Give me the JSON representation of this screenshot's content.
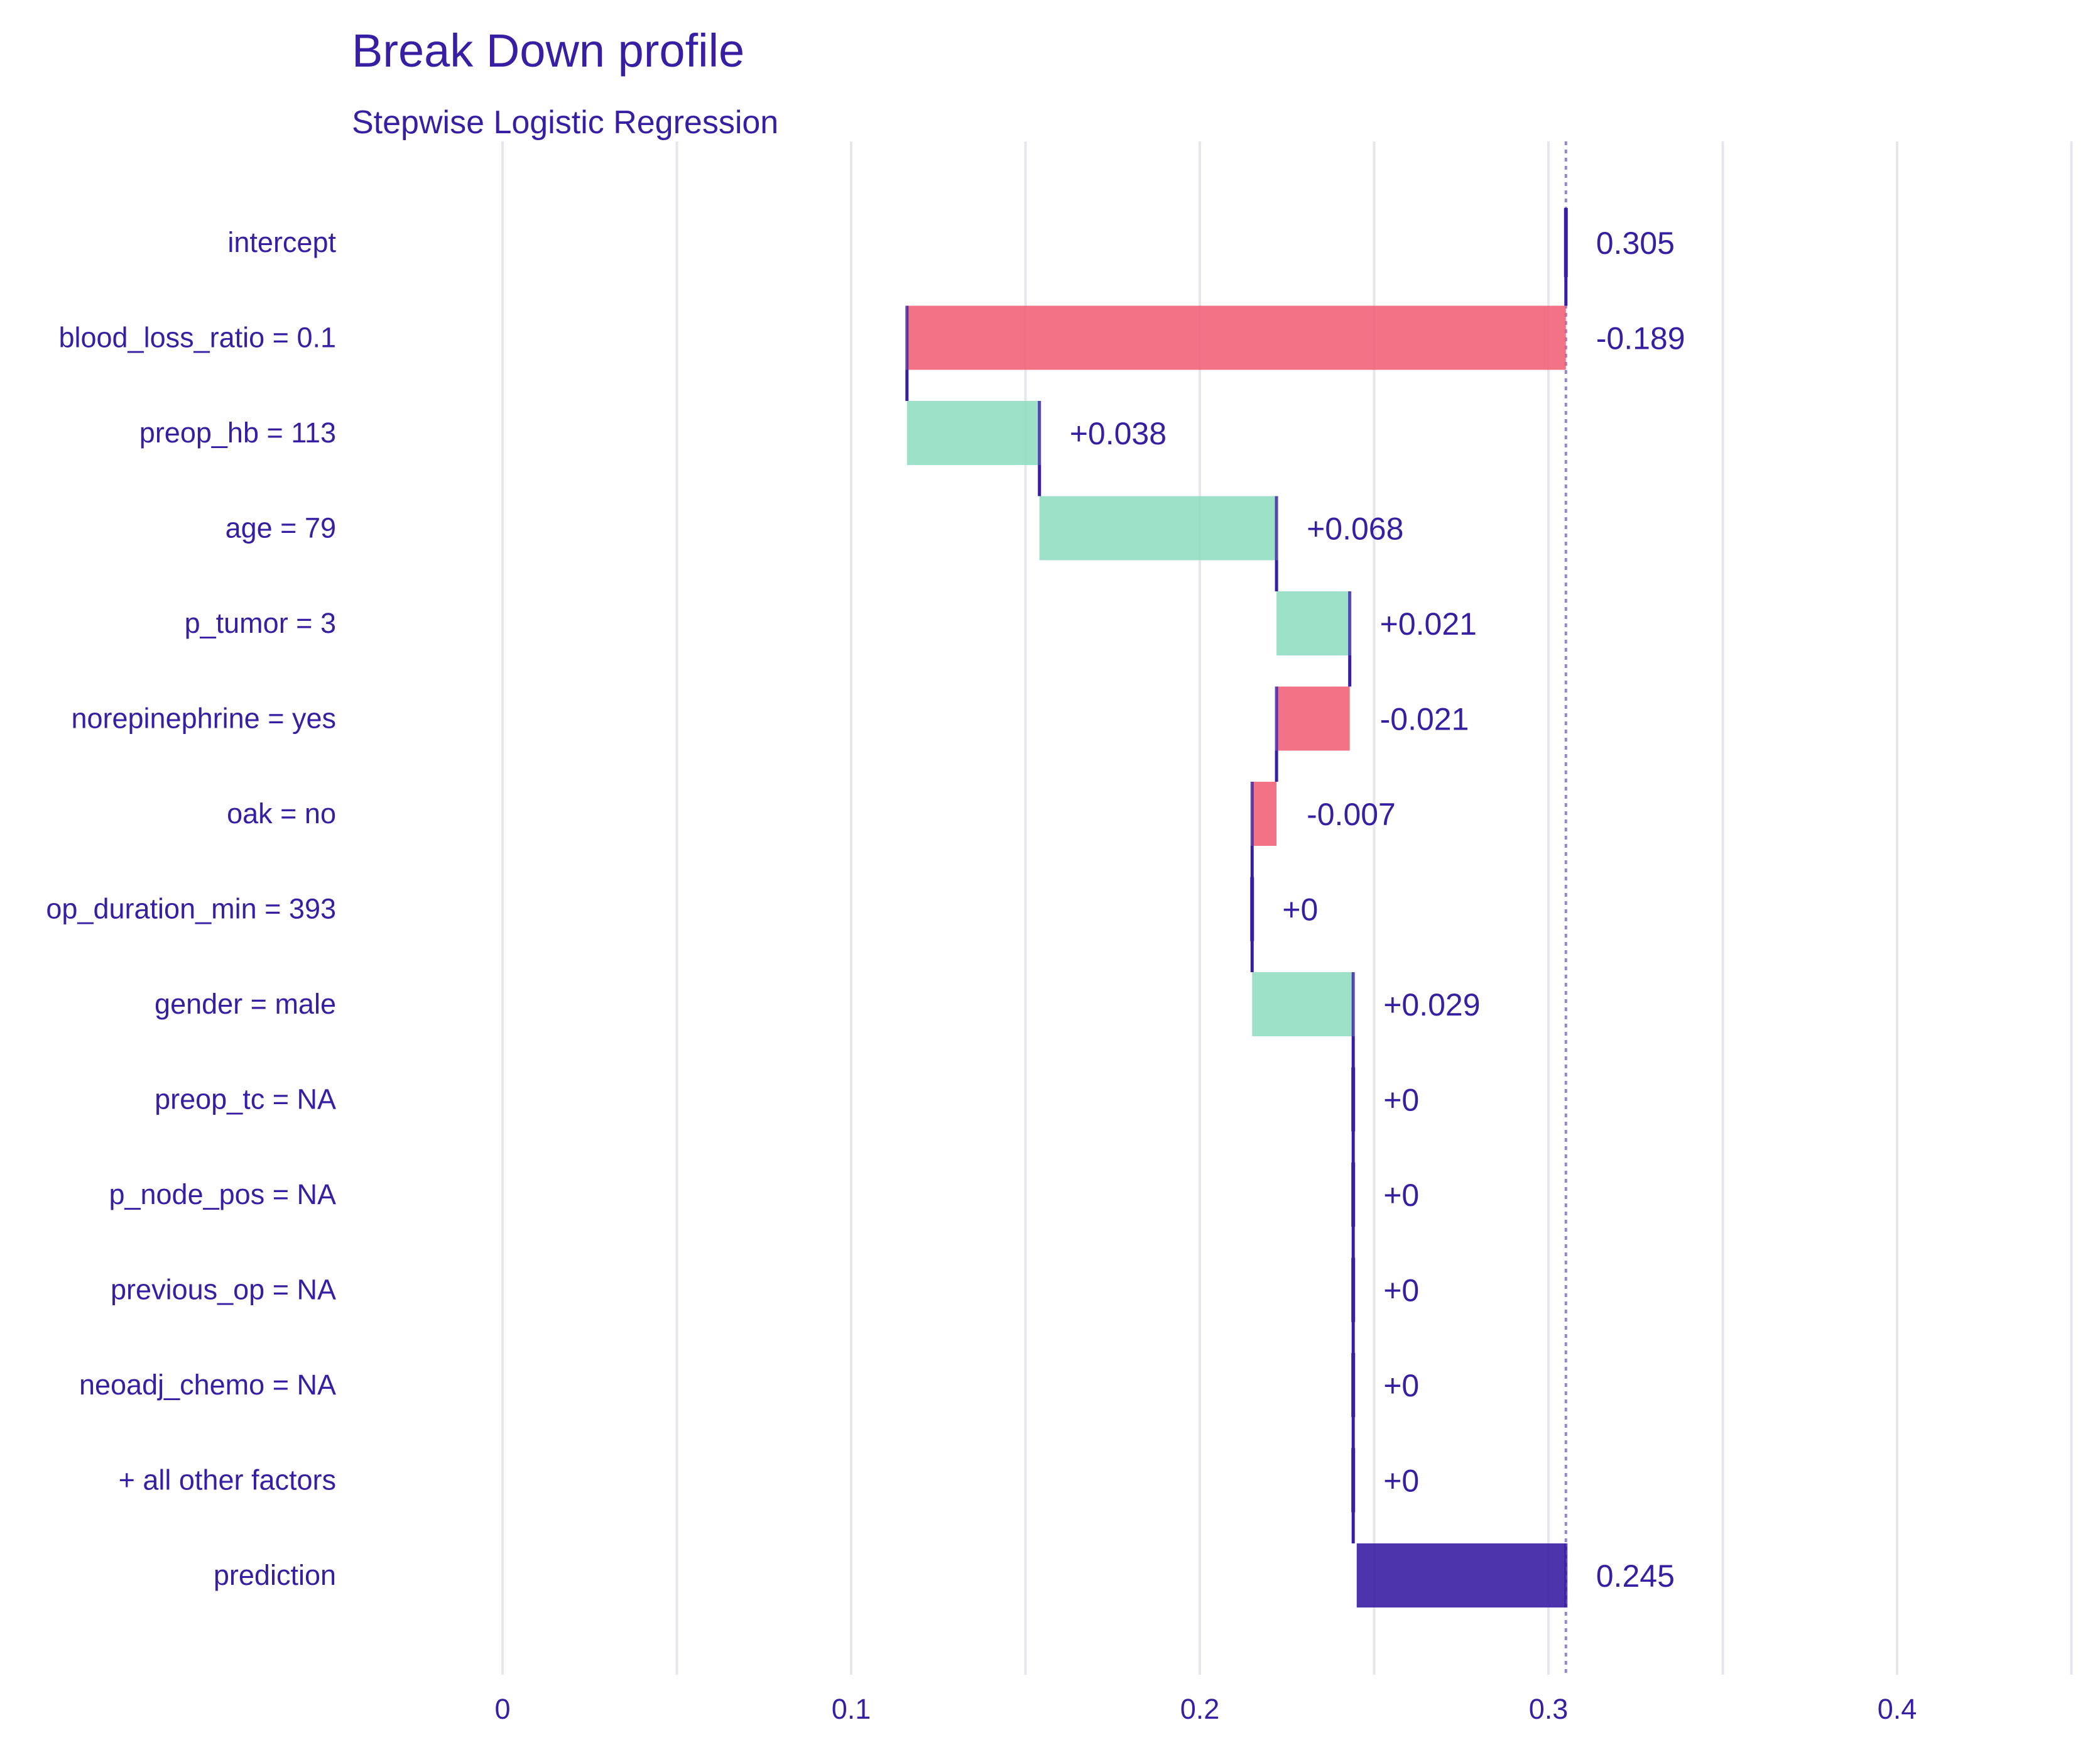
{
  "chart_data": {
    "type": "bar",
    "subtype": "break-down-waterfall",
    "title": "Break Down profile",
    "subtitle": "Stepwise Logistic Regression",
    "xlabel": "",
    "ylabel": "",
    "xlim": [
      0,
      0.45
    ],
    "x_ticks": [
      {
        "value": 0,
        "label": "0"
      },
      {
        "value": 0.1,
        "label": "0.1"
      },
      {
        "value": 0.2,
        "label": "0.2"
      },
      {
        "value": 0.3,
        "label": "0.3"
      },
      {
        "value": 0.4,
        "label": "0.4"
      }
    ],
    "grid": true,
    "intercept": 0.305,
    "prediction": 0.245,
    "colors": {
      "positive": "#8bdcbe",
      "negative": "#f05a71",
      "prediction": "#371ea3",
      "text": "#371ea3",
      "connector": "#371ea3",
      "grid": "#e6e6ee"
    },
    "rows": [
      {
        "label": "intercept",
        "start": 0.305,
        "end": 0.305,
        "value_label": "0.305",
        "kind": "intercept"
      },
      {
        "label": "blood_loss_ratio = 0.1",
        "start": 0.305,
        "end": 0.116,
        "value_label": "-0.189",
        "kind": "negative"
      },
      {
        "label": "preop_hb = 113",
        "start": 0.116,
        "end": 0.154,
        "value_label": "+0.038",
        "kind": "positive"
      },
      {
        "label": "age = 79",
        "start": 0.154,
        "end": 0.222,
        "value_label": "+0.068",
        "kind": "positive"
      },
      {
        "label": "p_tumor = 3",
        "start": 0.222,
        "end": 0.243,
        "value_label": "+0.021",
        "kind": "positive"
      },
      {
        "label": "norepinephrine = yes",
        "start": 0.243,
        "end": 0.222,
        "value_label": "-0.021",
        "kind": "negative"
      },
      {
        "label": "oak = no",
        "start": 0.222,
        "end": 0.215,
        "value_label": "-0.007",
        "kind": "negative"
      },
      {
        "label": "op_duration_min = 393",
        "start": 0.215,
        "end": 0.215,
        "value_label": "+0",
        "kind": "zero"
      },
      {
        "label": "gender = male",
        "start": 0.215,
        "end": 0.244,
        "value_label": "+0.029",
        "kind": "positive"
      },
      {
        "label": "preop_tc = NA",
        "start": 0.244,
        "end": 0.244,
        "value_label": "+0",
        "kind": "zero"
      },
      {
        "label": "p_node_pos = NA",
        "start": 0.244,
        "end": 0.244,
        "value_label": "+0",
        "kind": "zero"
      },
      {
        "label": "previous_op = NA",
        "start": 0.244,
        "end": 0.244,
        "value_label": "+0",
        "kind": "zero"
      },
      {
        "label": "neoadj_chemo = NA",
        "start": 0.244,
        "end": 0.244,
        "value_label": "+0",
        "kind": "zero"
      },
      {
        "label": "+ all other factors",
        "start": 0.244,
        "end": 0.244,
        "value_label": "+0",
        "kind": "zero"
      },
      {
        "label": "prediction",
        "start": 0.245,
        "end": 0.305,
        "value_label": "0.245",
        "kind": "prediction"
      }
    ]
  }
}
